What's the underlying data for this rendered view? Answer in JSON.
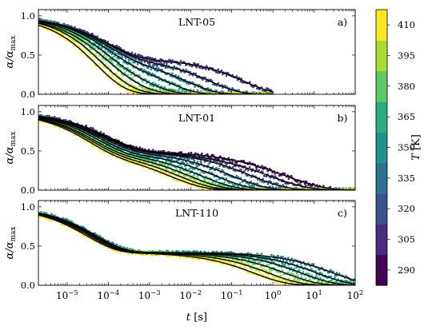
{
  "chart_data": {
    "type": "line",
    "xlabel": "t [s]",
    "xscale": "log",
    "xlim": [
      2e-06,
      100
    ],
    "x_ticks": [
      {
        "value": 1e-05,
        "label": "10−5"
      },
      {
        "value": 0.0001,
        "label": "10−4"
      },
      {
        "value": 0.001,
        "label": "10−3"
      },
      {
        "value": 0.01,
        "label": "10−2"
      },
      {
        "value": 0.1,
        "label": "10−1"
      },
      {
        "value": 1,
        "label": "100"
      },
      {
        "value": 10,
        "label": "101"
      },
      {
        "value": 100,
        "label": "102"
      }
    ],
    "ylabel": "α/αmax",
    "ylim": [
      0,
      1.08
    ],
    "y_ticks": [
      {
        "value": 0,
        "label": "0.0"
      },
      {
        "value": 0.5,
        "label": "0.5"
      },
      {
        "value": 1,
        "label": "1.0"
      }
    ],
    "temperatures": [
      290,
      305,
      320,
      335,
      350,
      365,
      380,
      395,
      410
    ],
    "colorbar": {
      "label": "T [K]",
      "min": 282.5,
      "max": 417.5,
      "ticks": [
        "290",
        "305",
        "320",
        "335",
        "350",
        "365",
        "380",
        "395",
        "410"
      ],
      "colors": [
        "#440154",
        "#472d7b",
        "#3b528b",
        "#2c728e",
        "#21918c",
        "#28ae80",
        "#5ec962",
        "#addc30",
        "#fde725"
      ]
    },
    "panels": [
      {
        "title": "LNT-05",
        "tag": "a)",
        "plateau": 0.45,
        "series": [
          {
            "T": 305,
            "tau1": 0.0001,
            "beta1": 0.55,
            "tau2": 0.2,
            "beta2": 0.6,
            "xmax": 1.0
          },
          {
            "T": 320,
            "tau1": 0.0001,
            "beta1": 0.55,
            "tau2": 0.03,
            "beta2": 0.6,
            "xmax": 1.0
          },
          {
            "T": 335,
            "tau1": 9e-05,
            "beta1": 0.55,
            "tau2": 0.008,
            "beta2": 0.6,
            "xmax": 1.0
          },
          {
            "T": 350,
            "tau1": 8e-05,
            "beta1": 0.6,
            "tau2": 0.0025,
            "beta2": 0.6,
            "xmax": 1.0
          },
          {
            "T": 365,
            "tau1": 7e-05,
            "beta1": 0.6,
            "tau2": 0.0008,
            "beta2": 0.6,
            "xmax": 1.0
          },
          {
            "T": 380,
            "tau1": 6e-05,
            "beta1": 0.6,
            "tau2": 0.00035,
            "beta2": 0.6,
            "xmax": 1.0
          },
          {
            "T": 395,
            "tau1": 5e-05,
            "beta1": 0.65,
            "tau2": 0.00016,
            "beta2": 0.6,
            "xmax": 1.0
          },
          {
            "T": 410,
            "tau1": 4e-05,
            "beta1": 0.65,
            "tau2": 8e-05,
            "beta2": 0.6,
            "xmax": 1.0
          }
        ]
      },
      {
        "title": "LNT-01",
        "tag": "b)",
        "plateau": 0.5,
        "series": [
          {
            "T": 290,
            "tau1": 0.0001,
            "beta1": 0.55,
            "tau2": 2.0,
            "beta2": 0.45,
            "xmax": 100
          },
          {
            "T": 305,
            "tau1": 9e-05,
            "beta1": 0.55,
            "tau2": 0.8,
            "beta2": 0.45,
            "xmax": 100
          },
          {
            "T": 320,
            "tau1": 8e-05,
            "beta1": 0.55,
            "tau2": 0.3,
            "beta2": 0.5,
            "xmax": 100
          },
          {
            "T": 335,
            "tau1": 7e-05,
            "beta1": 0.55,
            "tau2": 0.1,
            "beta2": 0.5,
            "xmax": 100
          },
          {
            "T": 350,
            "tau1": 6e-05,
            "beta1": 0.6,
            "tau2": 0.04,
            "beta2": 0.5,
            "xmax": 100
          },
          {
            "T": 365,
            "tau1": 5e-05,
            "beta1": 0.6,
            "tau2": 0.018,
            "beta2": 0.5,
            "xmax": 100
          },
          {
            "T": 380,
            "tau1": 4e-05,
            "beta1": 0.6,
            "tau2": 0.009,
            "beta2": 0.5,
            "xmax": 100
          },
          {
            "T": 395,
            "tau1": 3.5e-05,
            "beta1": 0.6,
            "tau2": 0.005,
            "beta2": 0.5,
            "xmax": 100
          },
          {
            "T": 410,
            "tau1": 3e-05,
            "beta1": 0.6,
            "tau2": 0.003,
            "beta2": 0.5,
            "xmax": 100
          }
        ]
      },
      {
        "title": "LNT-110",
        "tag": "c)",
        "plateau": 0.42,
        "series": [
          {
            "T": 335,
            "tau1": 5e-05,
            "beta1": 0.6,
            "tau2": 30,
            "beta2": 0.55,
            "xmax": 100
          },
          {
            "T": 350,
            "tau1": 5e-05,
            "beta1": 0.6,
            "tau2": 12,
            "beta2": 0.55,
            "xmax": 100
          },
          {
            "T": 365,
            "tau1": 4.5e-05,
            "beta1": 0.6,
            "tau2": 5,
            "beta2": 0.55,
            "xmax": 100
          },
          {
            "T": 380,
            "tau1": 4e-05,
            "beta1": 0.6,
            "tau2": 2,
            "beta2": 0.55,
            "xmax": 100
          },
          {
            "T": 395,
            "tau1": 3.5e-05,
            "beta1": 0.6,
            "tau2": 0.8,
            "beta2": 0.55,
            "xmax": 100
          },
          {
            "T": 410,
            "tau1": 3e-05,
            "beta1": 0.6,
            "tau2": 0.35,
            "beta2": 0.55,
            "xmax": 100
          }
        ]
      }
    ]
  }
}
